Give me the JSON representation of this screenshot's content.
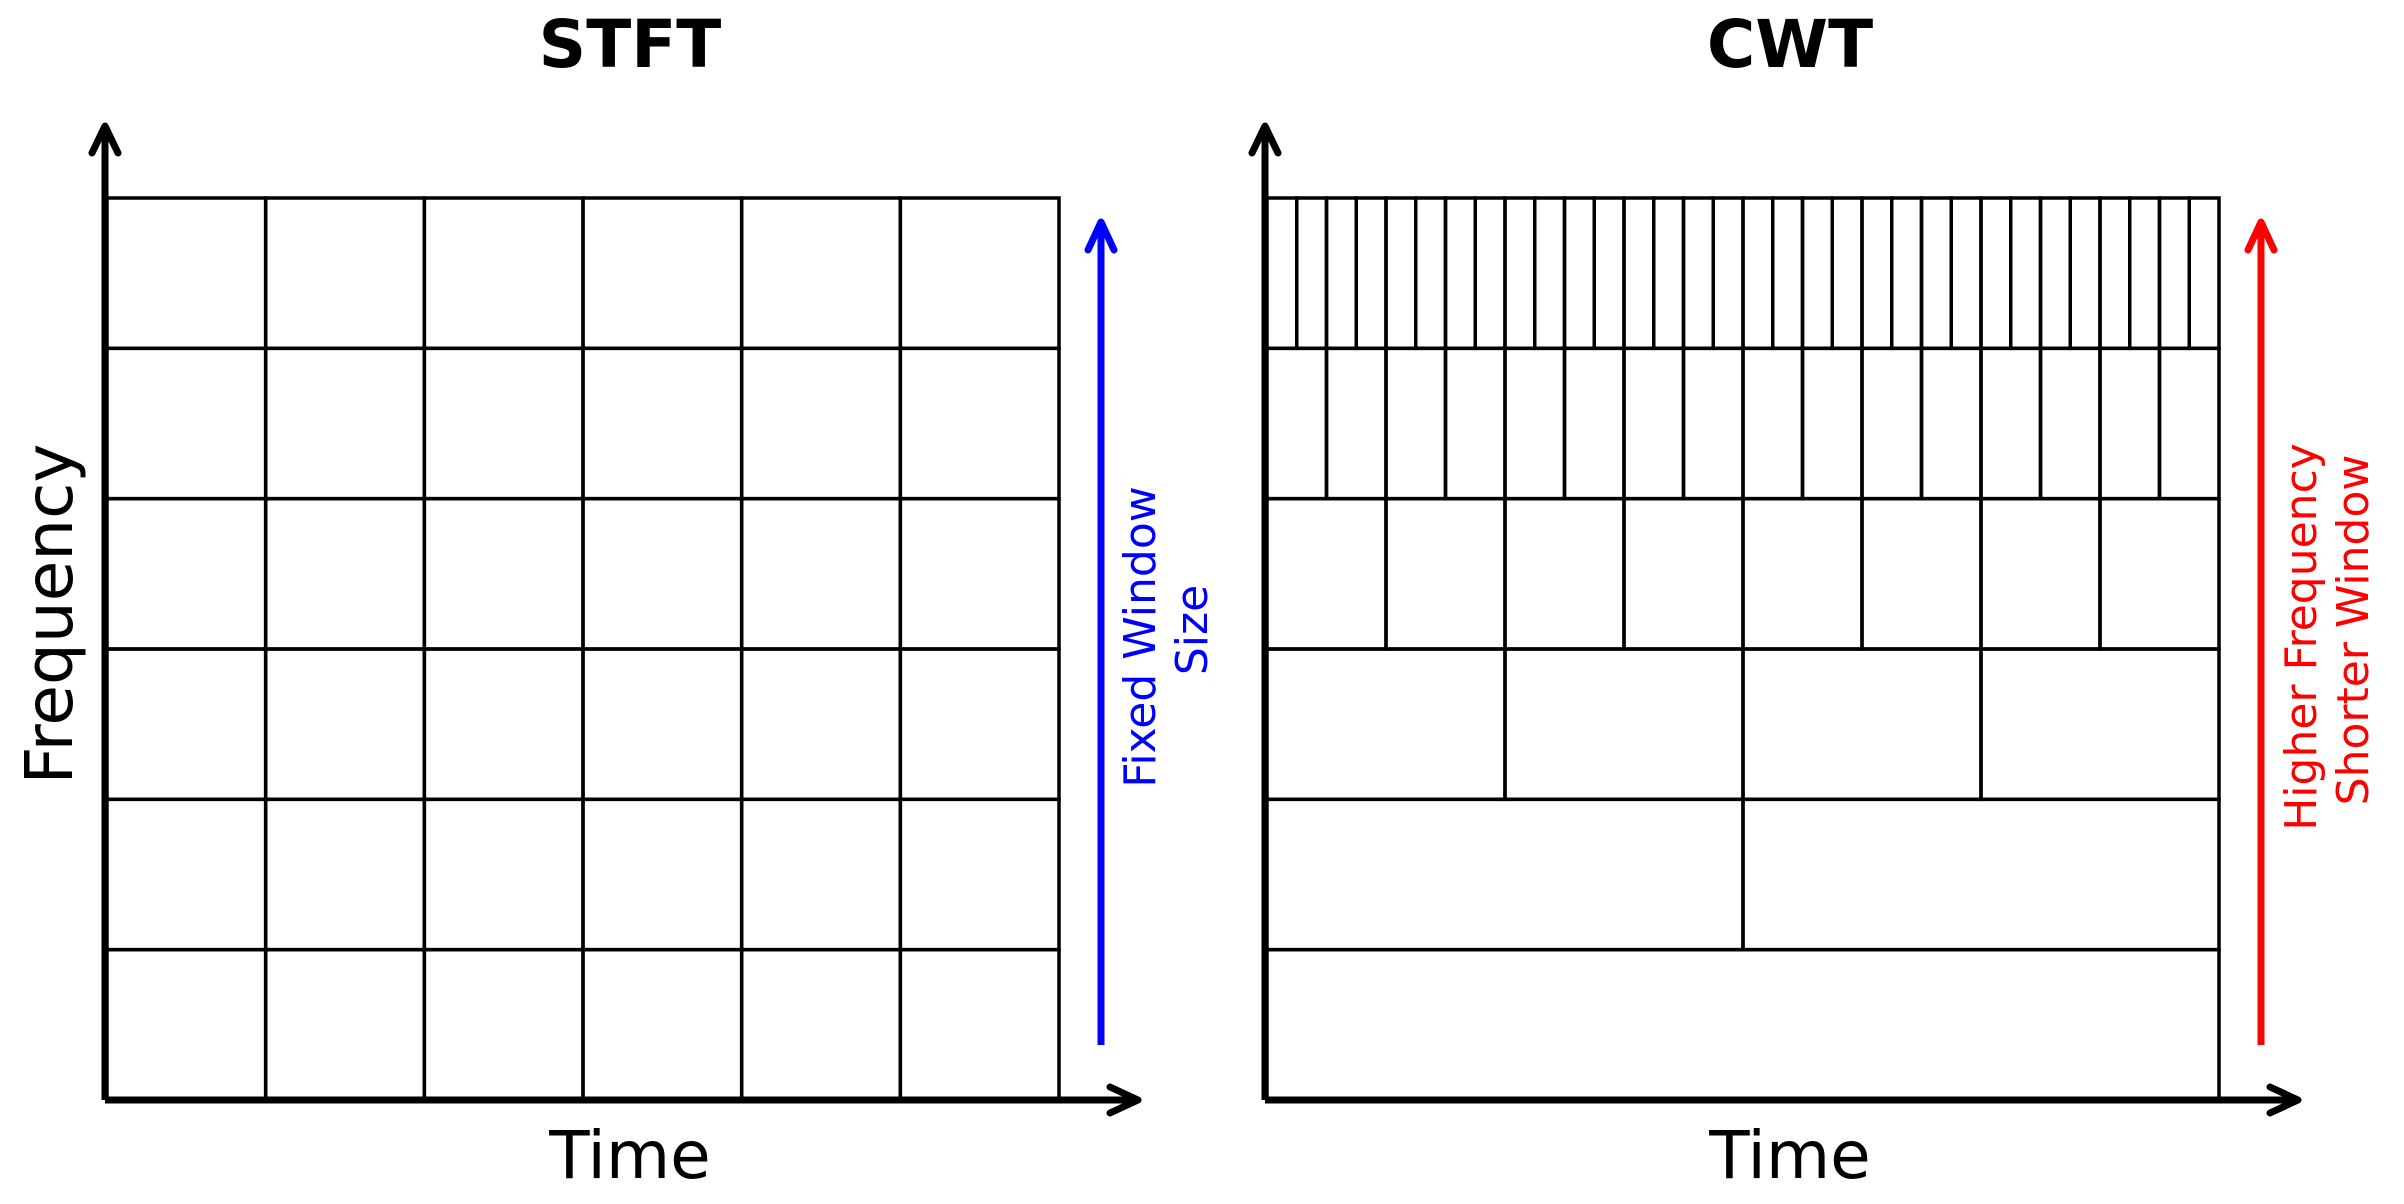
{
  "panels": [
    {
      "id": "stft",
      "title": "STFT",
      "xlabel": "Time",
      "ylabel": "Frequency",
      "rows": [
        6,
        6,
        6,
        6,
        6,
        6
      ],
      "annotation": {
        "lines": [
          "Fixed Window",
          "Size"
        ],
        "color": "#0000ff"
      }
    },
    {
      "id": "cwt",
      "title": "CWT",
      "xlabel": "Time",
      "ylabel": "",
      "rows": [
        32,
        16,
        8,
        4,
        2,
        1
      ],
      "annotation": {
        "lines": [
          "Higher Frequency",
          "Shorter Window"
        ],
        "color": "#ff0000"
      }
    }
  ]
}
